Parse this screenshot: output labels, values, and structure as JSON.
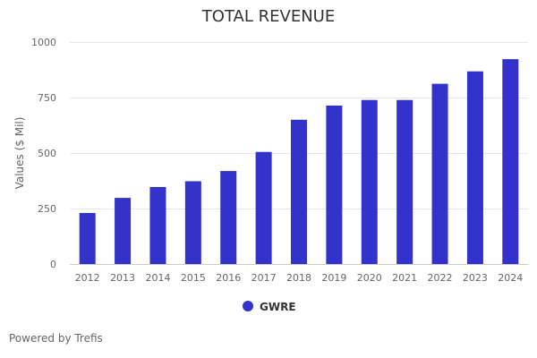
{
  "chart_data": {
    "type": "bar",
    "title": "TOTAL REVENUE",
    "xlabel": "",
    "ylabel": "Values ($ Mil)",
    "ylim": [
      0,
      1000
    ],
    "yticks": [
      "0",
      "250",
      "500",
      "750",
      "1000"
    ],
    "categories": [
      "2012",
      "2013",
      "2014",
      "2015",
      "2016",
      "2017",
      "2018",
      "2019",
      "2020",
      "2021",
      "2022",
      "2023",
      "2024"
    ],
    "series": [
      {
        "name": "GWRE",
        "color": "#3333cc",
        "values": [
          230,
          298,
          347,
          373,
          419,
          505,
          650,
          714,
          739,
          739,
          812,
          868,
          923
        ]
      }
    ],
    "grid": true,
    "legend_position": "bottom-center"
  },
  "footer": {
    "credits": "Powered by Trefis"
  }
}
